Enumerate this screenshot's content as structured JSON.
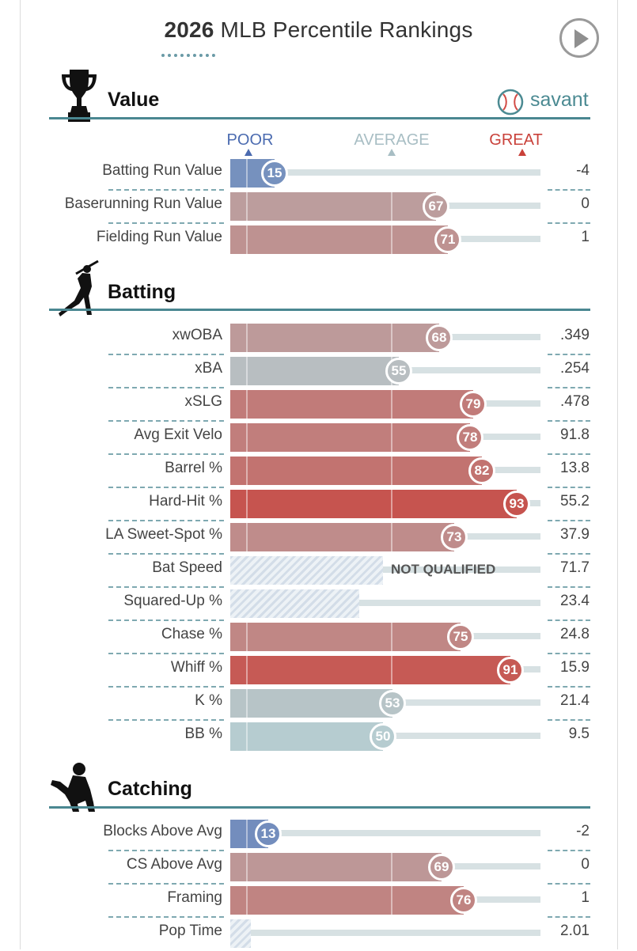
{
  "header": {
    "title_bold": "2026",
    "title_rest": "MLB Percentile Rankings",
    "play_button": "play-icon"
  },
  "brand": {
    "logo_text": "savant",
    "logo_icon": "baseball-icon"
  },
  "legend": {
    "poor": "POOR",
    "average": "AVERAGE",
    "great": "GREAT"
  },
  "colors": {
    "poor": "#5b77b6",
    "great": "#c9413a",
    "average": "#b6ccd0",
    "section_rule": "#4a8791",
    "track": "#d7e1e3"
  },
  "chart_data": {
    "type": "bar",
    "scale": "percentile",
    "xlim": [
      0,
      100
    ],
    "sections": [
      {
        "title": "Value",
        "icon": "trophy-icon",
        "rows": [
          {
            "label": "Batting Run Value",
            "percentile": 15,
            "stat": "-4"
          },
          {
            "label": "Baserunning Run Value",
            "percentile": 67,
            "stat": "0"
          },
          {
            "label": "Fielding Run Value",
            "percentile": 71,
            "stat": "1"
          }
        ]
      },
      {
        "title": "Batting",
        "icon": "batter-icon",
        "rows": [
          {
            "label": "xwOBA",
            "percentile": 68,
            "stat": ".349"
          },
          {
            "label": "xBA",
            "percentile": 55,
            "stat": ".254"
          },
          {
            "label": "xSLG",
            "percentile": 79,
            "stat": ".478"
          },
          {
            "label": "Avg Exit Velo",
            "percentile": 78,
            "stat": "91.8"
          },
          {
            "label": "Barrel %",
            "percentile": 82,
            "stat": "13.8"
          },
          {
            "label": "Hard-Hit %",
            "percentile": 93,
            "stat": "55.2"
          },
          {
            "label": "LA Sweet-Spot %",
            "percentile": 73,
            "stat": "37.9"
          },
          {
            "label": "Bat Speed",
            "percentile": null,
            "qualified": false,
            "note": "NOT QUALIFIED",
            "stat": "71.7"
          },
          {
            "label": "Squared-Up %",
            "percentile": null,
            "qualified": false,
            "stat": "23.4"
          },
          {
            "label": "Chase %",
            "percentile": 75,
            "stat": "24.8"
          },
          {
            "label": "Whiff %",
            "percentile": 91,
            "stat": "15.9"
          },
          {
            "label": "K %",
            "percentile": 53,
            "stat": "21.4"
          },
          {
            "label": "BB %",
            "percentile": 50,
            "stat": "9.5"
          }
        ]
      },
      {
        "title": "Catching",
        "icon": "catcher-icon",
        "rows": [
          {
            "label": "Blocks Above Avg",
            "percentile": 13,
            "stat": "-2"
          },
          {
            "label": "CS Above Avg",
            "percentile": 69,
            "stat": "0"
          },
          {
            "label": "Framing",
            "percentile": 76,
            "stat": "1"
          },
          {
            "label": "Pop Time",
            "percentile": null,
            "qualified": false,
            "stat": "2.01"
          }
        ]
      }
    ]
  }
}
